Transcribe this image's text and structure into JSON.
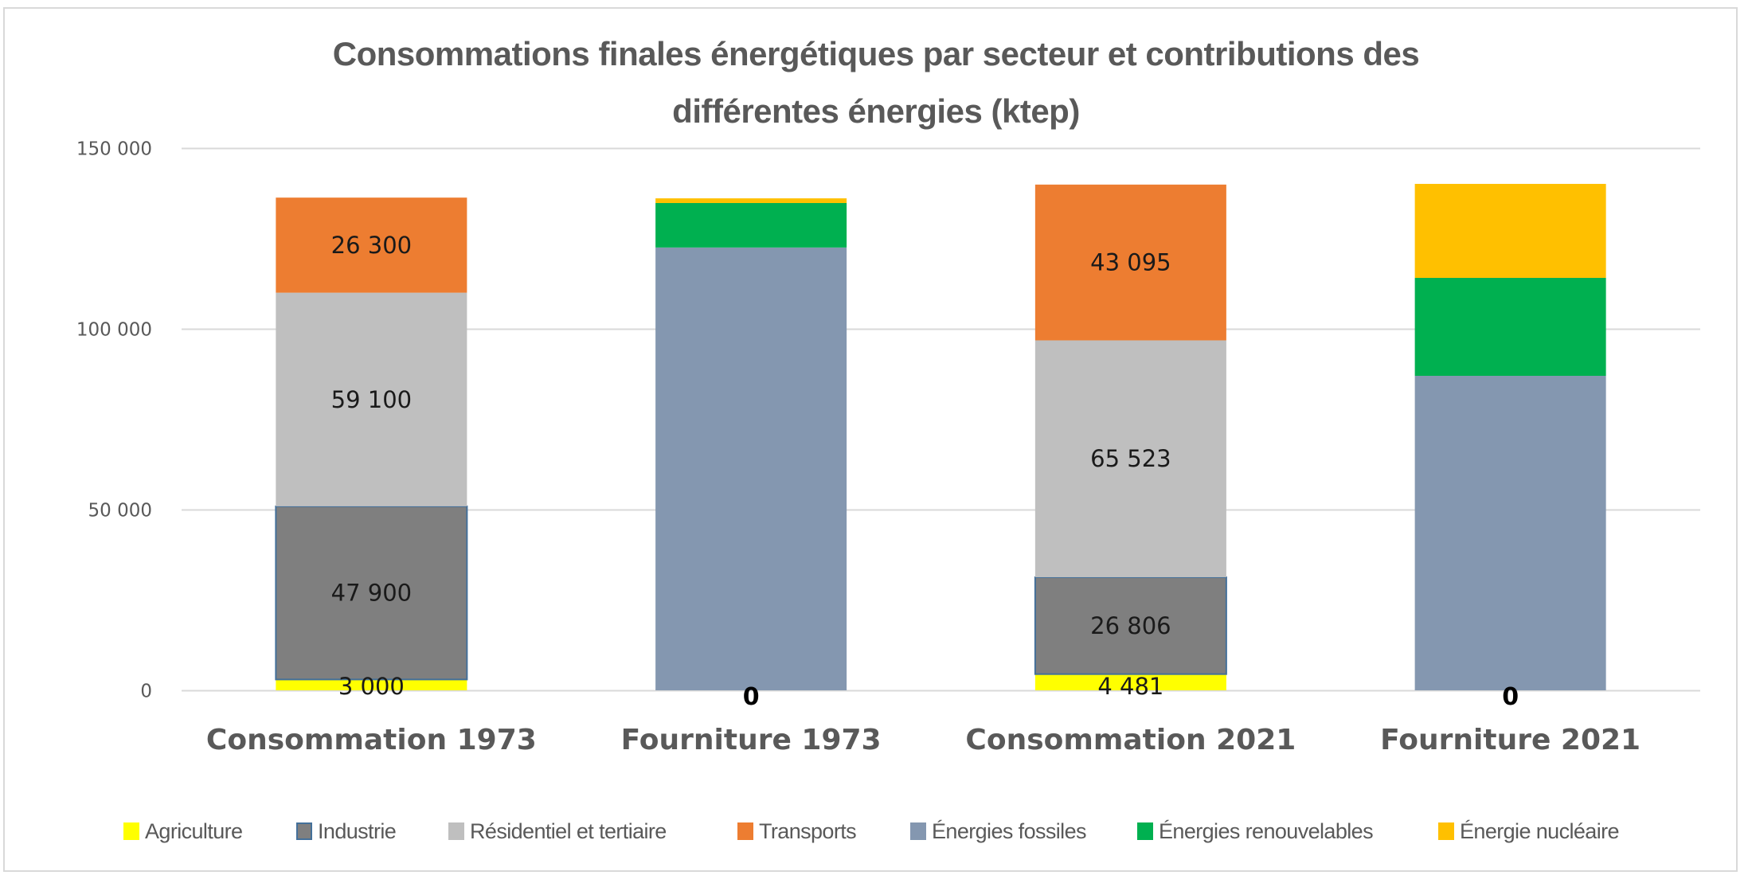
{
  "chart_data": {
    "type": "bar",
    "stacked": true,
    "title": "Consommations finales énergétiques par secteur et contributions des différentes énergies (ktep)",
    "title_lines": [
      "Consommations finales énergétiques par secteur et contributions des",
      "différentes énergies (ktep)"
    ],
    "xlabel": "",
    "ylabel": "",
    "ylim": [
      0,
      150000
    ],
    "yticks": [
      0,
      50000,
      100000,
      150000
    ],
    "ytick_labels": [
      "0",
      "50 000",
      "100 000",
      "150 000"
    ],
    "grid": true,
    "legend_position": "bottom",
    "categories": [
      "Consommation 1973",
      "Fourniture 1973",
      "Consommation 2021",
      "Fourniture 2021"
    ],
    "series": [
      {
        "name": "Agriculture",
        "color": "#ffff00",
        "values": [
          3000,
          0,
          4481,
          0
        ],
        "labels": [
          "3 000",
          "0",
          "4 481",
          "0"
        ]
      },
      {
        "name": "Industrie",
        "color": "#7f7f7f",
        "border": "#44709a",
        "values": [
          47900,
          0,
          26806,
          0
        ],
        "labels": [
          "47 900",
          "",
          "26 806",
          ""
        ]
      },
      {
        "name": "Résidentiel et tertiaire",
        "color": "#bfbfbf",
        "values": [
          59100,
          0,
          65523,
          0
        ],
        "labels": [
          "59 100",
          "",
          "65 523",
          ""
        ]
      },
      {
        "name": "Transports",
        "color": "#ed7d31",
        "values": [
          26300,
          0,
          43095,
          0
        ],
        "labels": [
          "26 300",
          "",
          "43 095",
          ""
        ]
      },
      {
        "name": "Énergies fossiles",
        "color": "#8497b0",
        "values": [
          0,
          122500,
          0,
          87000
        ],
        "labels": [
          "",
          "",
          "",
          ""
        ]
      },
      {
        "name": "Énergies renouvelables",
        "color": "#00b050",
        "values": [
          0,
          12300,
          0,
          27100
        ],
        "labels": [
          "",
          "",
          "",
          ""
        ]
      },
      {
        "name": "Énergie nucléaire",
        "color": "#ffc000",
        "values": [
          0,
          1300,
          0,
          26000
        ],
        "labels": [
          "",
          "",
          "",
          ""
        ]
      }
    ]
  },
  "legend": {
    "items": [
      {
        "label": "Agriculture",
        "color": "#ffff00",
        "border": "#ffff00"
      },
      {
        "label": "Industrie",
        "color": "#7f7f7f",
        "border": "#44709a"
      },
      {
        "label": "Résidentiel et tertiaire",
        "color": "#bfbfbf",
        "border": "#bfbfbf"
      },
      {
        "label": "Transports",
        "color": "#ed7d31",
        "border": "#ed7d31"
      },
      {
        "label": "Énergies fossiles",
        "color": "#8497b0",
        "border": "#8497b0"
      },
      {
        "label": "Énergies renouvelables",
        "color": "#00b050",
        "border": "#00b050"
      },
      {
        "label": "Énergie nucléaire",
        "color": "#ffc000",
        "border": "#ffc000"
      }
    ]
  }
}
